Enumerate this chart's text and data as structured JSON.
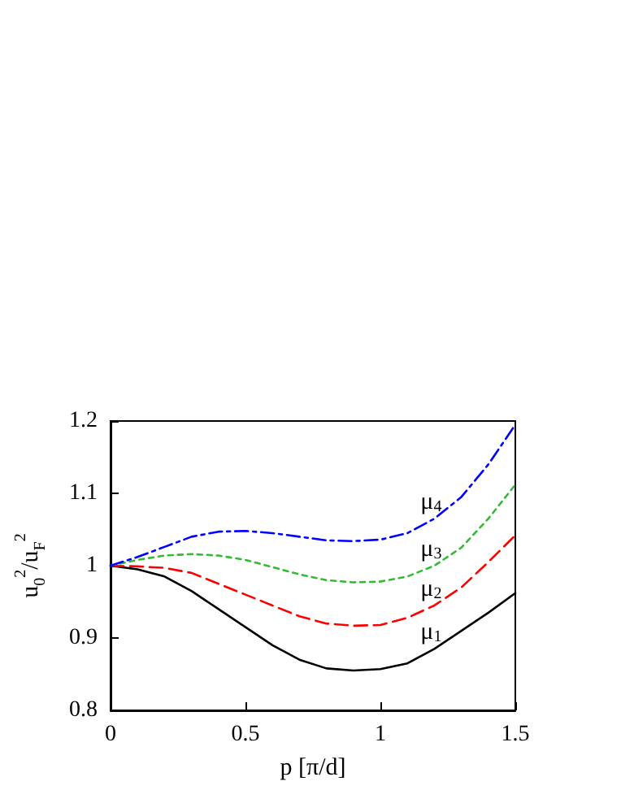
{
  "chart_data": {
    "type": "line",
    "xlabel": "p [π/d]",
    "ylabel": "u$_{0}$$^{2}$/u$_{F}$$^{2}$",
    "x": [
      0,
      0.1,
      0.2,
      0.3,
      0.4,
      0.5,
      0.6,
      0.7,
      0.8,
      0.9,
      1.0,
      1.1,
      1.2,
      1.3,
      1.4,
      1.5
    ],
    "series": [
      {
        "name": "μ$_{1}$",
        "color": "#000000",
        "line_style": "solid",
        "values": [
          1,
          0.995,
          0.985,
          0.965,
          0.94,
          0.915,
          0.89,
          0.87,
          0.858,
          0.855,
          0.857,
          0.865,
          0.885,
          0.91,
          0.935,
          0.962
        ]
      },
      {
        "name": "μ$_{2}$",
        "color": "#ff0000",
        "line_style": "dashed",
        "values": [
          1,
          0.999,
          0.997,
          0.99,
          0.975,
          0.96,
          0.945,
          0.93,
          0.92,
          0.917,
          0.918,
          0.928,
          0.945,
          0.97,
          1.005,
          1.042
        ]
      },
      {
        "name": "μ$_{3}$",
        "color": "#33bb33",
        "line_style": "dotted",
        "values": [
          1,
          1.008,
          1.014,
          1.016,
          1.014,
          1.008,
          0.998,
          0.988,
          0.98,
          0.977,
          0.978,
          0.985,
          1.0,
          1.025,
          1.065,
          1.112
        ]
      },
      {
        "name": "μ$_{4}$",
        "color": "#0000ff",
        "line_style": "dashdot",
        "values": [
          1,
          1.012,
          1.026,
          1.04,
          1.047,
          1.048,
          1.045,
          1.04,
          1.035,
          1.034,
          1.036,
          1.045,
          1.065,
          1.095,
          1.14,
          1.195
        ]
      }
    ],
    "xlim": [
      0,
      1.5
    ],
    "xticks": [
      0,
      0.5,
      1,
      1.5
    ],
    "ylim": [
      0.8,
      1.2
    ],
    "yticks": [
      0.8,
      0.9,
      1,
      1.1,
      1.2
    ],
    "grid": false,
    "marker": "none"
  }
}
